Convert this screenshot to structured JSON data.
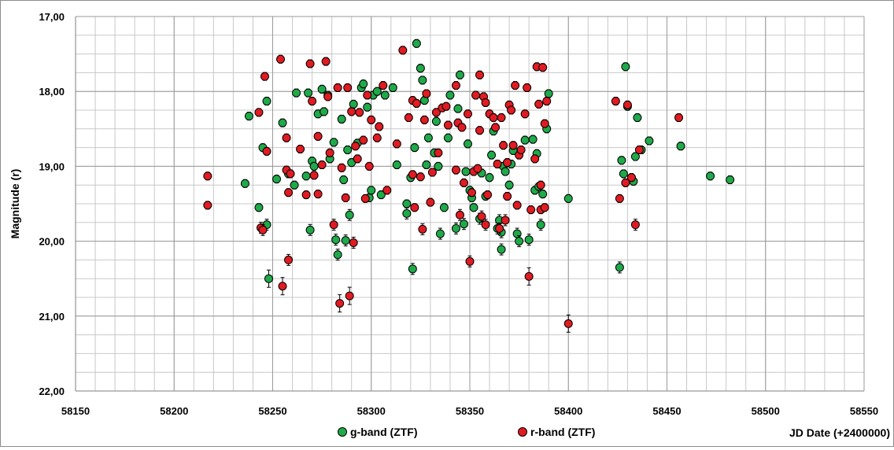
{
  "chart_data": {
    "type": "scatter",
    "ylabel": "Magnitude (r)",
    "xlabel": "JD Date (+2400000)",
    "xlim": [
      58150,
      58550
    ],
    "ylim": [
      17.0,
      22.0
    ],
    "y_inverted": true,
    "x_ticks": [
      "58150",
      "58200",
      "58250",
      "58300",
      "58350",
      "58400",
      "58450",
      "58500",
      "58550"
    ],
    "y_ticks": [
      "17,00",
      "18,00",
      "19,00",
      "20,00",
      "21,00",
      "22,00"
    ],
    "grid": true,
    "legend_position": "bottom-center",
    "series": [
      {
        "name": "g-band (ZTF)",
        "color": "#1faa4a",
        "points": [
          [
            58236,
            19.23
          ],
          [
            58238,
            18.33
          ],
          [
            58243,
            19.55
          ],
          [
            58245,
            18.75
          ],
          [
            58247,
            18.13
          ],
          [
            58247,
            19.78
          ],
          [
            58248,
            20.5
          ],
          [
            58252,
            19.17
          ],
          [
            58255,
            18.42
          ],
          [
            58258,
            19.1
          ],
          [
            58261,
            19.25
          ],
          [
            58262,
            18.02
          ],
          [
            58267,
            19.13
          ],
          [
            58268,
            18.02
          ],
          [
            58269,
            19.85
          ],
          [
            58270,
            18.93
          ],
          [
            58271,
            19.0
          ],
          [
            58273,
            18.3
          ],
          [
            58275,
            17.97
          ],
          [
            58276,
            18.27
          ],
          [
            58278,
            18.05
          ],
          [
            58279,
            18.9
          ],
          [
            58281,
            18.68
          ],
          [
            58282,
            19.98
          ],
          [
            58283,
            20.18
          ],
          [
            58285,
            18.37
          ],
          [
            58286,
            19.18
          ],
          [
            58287,
            19.99
          ],
          [
            58288,
            18.78
          ],
          [
            58289,
            19.65
          ],
          [
            58290,
            18.95
          ],
          [
            58291,
            18.17
          ],
          [
            58293,
            18.69
          ],
          [
            58295,
            17.95
          ],
          [
            58296,
            17.9
          ],
          [
            58298,
            18.21
          ],
          [
            58299,
            19.42
          ],
          [
            58300,
            19.32
          ],
          [
            58301,
            18.05
          ],
          [
            58303,
            18.0
          ],
          [
            58305,
            19.38
          ],
          [
            58307,
            18.05
          ],
          [
            58311,
            17.95
          ],
          [
            58313,
            18.98
          ],
          [
            58318,
            19.5
          ],
          [
            58318,
            19.63
          ],
          [
            58320,
            19.15
          ],
          [
            58321,
            20.37
          ],
          [
            58322,
            18.75
          ],
          [
            58323,
            17.36
          ],
          [
            58325,
            17.69
          ],
          [
            58326,
            17.85
          ],
          [
            58327,
            18.12
          ],
          [
            58328,
            18.98
          ],
          [
            58329,
            18.62
          ],
          [
            58332,
            18.82
          ],
          [
            58333,
            18.4
          ],
          [
            58334,
            19.0
          ],
          [
            58335,
            19.9
          ],
          [
            58337,
            19.55
          ],
          [
            58339,
            18.62
          ],
          [
            58340,
            18.05
          ],
          [
            58343,
            19.83
          ],
          [
            58344,
            18.23
          ],
          [
            58345,
            17.78
          ],
          [
            58347,
            19.77
          ],
          [
            58348,
            19.07
          ],
          [
            58349,
            18.7
          ],
          [
            58350,
            19.32
          ],
          [
            58351,
            19.42
          ],
          [
            58352,
            19.55
          ],
          [
            58355,
            19.7
          ],
          [
            58356,
            19.09
          ],
          [
            58358,
            19.4
          ],
          [
            58360,
            19.15
          ],
          [
            58361,
            18.85
          ],
          [
            58362,
            18.53
          ],
          [
            58364,
            19.83
          ],
          [
            58365,
            19.72
          ],
          [
            58366,
            19.88
          ],
          [
            58366,
            20.11
          ],
          [
            58367,
            19.0
          ],
          [
            58368,
            19.07
          ],
          [
            58369,
            18.95
          ],
          [
            58370,
            19.25
          ],
          [
            58371,
            18.97
          ],
          [
            58372,
            18.79
          ],
          [
            58374,
            19.9
          ],
          [
            58375,
            20.0
          ],
          [
            58378,
            18.65
          ],
          [
            58380,
            19.98
          ],
          [
            58382,
            18.64
          ],
          [
            58383,
            19.32
          ],
          [
            58384,
            18.83
          ],
          [
            58385,
            19.27
          ],
          [
            58386,
            19.78
          ],
          [
            58387,
            19.37
          ],
          [
            58389,
            18.5
          ],
          [
            58390,
            18.03
          ],
          [
            58400,
            19.43
          ],
          [
            58426,
            20.35
          ],
          [
            58427,
            18.92
          ],
          [
            58428,
            19.1
          ],
          [
            58429,
            17.67
          ],
          [
            58430,
            18.2
          ],
          [
            58432,
            19.15
          ],
          [
            58433,
            19.2
          ],
          [
            58434,
            18.87
          ],
          [
            58435,
            18.35
          ],
          [
            58437,
            18.78
          ],
          [
            58441,
            18.66
          ],
          [
            58457,
            18.73
          ],
          [
            58472,
            19.13
          ],
          [
            58482,
            19.18
          ]
        ]
      },
      {
        "name": "r-band (ZTF)",
        "color": "#e11b22",
        "points": [
          [
            58217,
            19.13
          ],
          [
            58217,
            19.52
          ],
          [
            58243,
            18.28
          ],
          [
            58244,
            19.82
          ],
          [
            58245,
            19.85
          ],
          [
            58246,
            17.8
          ],
          [
            58247,
            18.8
          ],
          [
            58254,
            17.57
          ],
          [
            58255,
            20.6
          ],
          [
            58257,
            18.62
          ],
          [
            58257,
            19.05
          ],
          [
            58258,
            19.35
          ],
          [
            58258,
            20.25
          ],
          [
            58259,
            19.1
          ],
          [
            58264,
            18.77
          ],
          [
            58267,
            19.38
          ],
          [
            58269,
            17.63
          ],
          [
            58270,
            18.13
          ],
          [
            58271,
            19.12
          ],
          [
            58273,
            18.6
          ],
          [
            58273,
            19.37
          ],
          [
            58275,
            18.98
          ],
          [
            58277,
            17.6
          ],
          [
            58278,
            18.07
          ],
          [
            58279,
            18.82
          ],
          [
            58281,
            19.78
          ],
          [
            58283,
            17.95
          ],
          [
            58284,
            20.83
          ],
          [
            58285,
            19.02
          ],
          [
            58287,
            19.42
          ],
          [
            58288,
            17.95
          ],
          [
            58289,
            20.73
          ],
          [
            58290,
            18.27
          ],
          [
            58291,
            20.02
          ],
          [
            58292,
            18.73
          ],
          [
            58293,
            18.9
          ],
          [
            58294,
            18.28
          ],
          [
            58296,
            18.65
          ],
          [
            58297,
            19.43
          ],
          [
            58298,
            18.05
          ],
          [
            58299,
            19.0
          ],
          [
            58300,
            18.38
          ],
          [
            58303,
            18.62
          ],
          [
            58304,
            18.47
          ],
          [
            58306,
            17.92
          ],
          [
            58308,
            19.32
          ],
          [
            58313,
            18.7
          ],
          [
            58316,
            17.45
          ],
          [
            58319,
            18.35
          ],
          [
            58321,
            19.11
          ],
          [
            58321,
            18.12
          ],
          [
            58322,
            19.55
          ],
          [
            58323,
            18.16
          ],
          [
            58325,
            19.14
          ],
          [
            58326,
            19.84
          ],
          [
            58327,
            18.38
          ],
          [
            58328,
            18.03
          ],
          [
            58330,
            19.48
          ],
          [
            58331,
            19.08
          ],
          [
            58333,
            18.28
          ],
          [
            58334,
            18.82
          ],
          [
            58336,
            18.22
          ],
          [
            58338,
            18.2
          ],
          [
            58339,
            18.45
          ],
          [
            58343,
            17.92
          ],
          [
            58343,
            19.05
          ],
          [
            58344,
            18.42
          ],
          [
            58345,
            19.65
          ],
          [
            58346,
            18.48
          ],
          [
            58347,
            19.22
          ],
          [
            58349,
            18.3
          ],
          [
            58350,
            20.27
          ],
          [
            58351,
            19.35
          ],
          [
            58352,
            19.07
          ],
          [
            58353,
            18.05
          ],
          [
            58354,
            19.03
          ],
          [
            58355,
            17.78
          ],
          [
            58355,
            18.52
          ],
          [
            58356,
            19.67
          ],
          [
            58357,
            18.07
          ],
          [
            58358,
            18.15
          ],
          [
            58358,
            19.78
          ],
          [
            58359,
            19.38
          ],
          [
            58360,
            18.3
          ],
          [
            58362,
            18.35
          ],
          [
            58363,
            18.48
          ],
          [
            58364,
            18.97
          ],
          [
            58365,
            19.83
          ],
          [
            58366,
            18.35
          ],
          [
            58367,
            18.72
          ],
          [
            58368,
            19.72
          ],
          [
            58369,
            18.95
          ],
          [
            58369,
            19.4
          ],
          [
            58370,
            18.18
          ],
          [
            58371,
            18.25
          ],
          [
            58372,
            18.72
          ],
          [
            58373,
            17.92
          ],
          [
            58374,
            19.52
          ],
          [
            58375,
            18.85
          ],
          [
            58376,
            18.78
          ],
          [
            58378,
            18.3
          ],
          [
            58379,
            17.95
          ],
          [
            58380,
            20.47
          ],
          [
            58381,
            19.58
          ],
          [
            58383,
            18.9
          ],
          [
            58384,
            17.67
          ],
          [
            58385,
            18.17
          ],
          [
            58386,
            19.25
          ],
          [
            58386,
            19.58
          ],
          [
            58387,
            17.68
          ],
          [
            58388,
            18.43
          ],
          [
            58388,
            19.55
          ],
          [
            58389,
            18.13
          ],
          [
            58400,
            21.1
          ],
          [
            58424,
            18.13
          ],
          [
            58426,
            19.43
          ],
          [
            58429,
            19.22
          ],
          [
            58430,
            18.18
          ],
          [
            58432,
            19.15
          ],
          [
            58434,
            19.78
          ],
          [
            58436,
            18.78
          ],
          [
            58456,
            18.35
          ]
        ]
      }
    ]
  }
}
